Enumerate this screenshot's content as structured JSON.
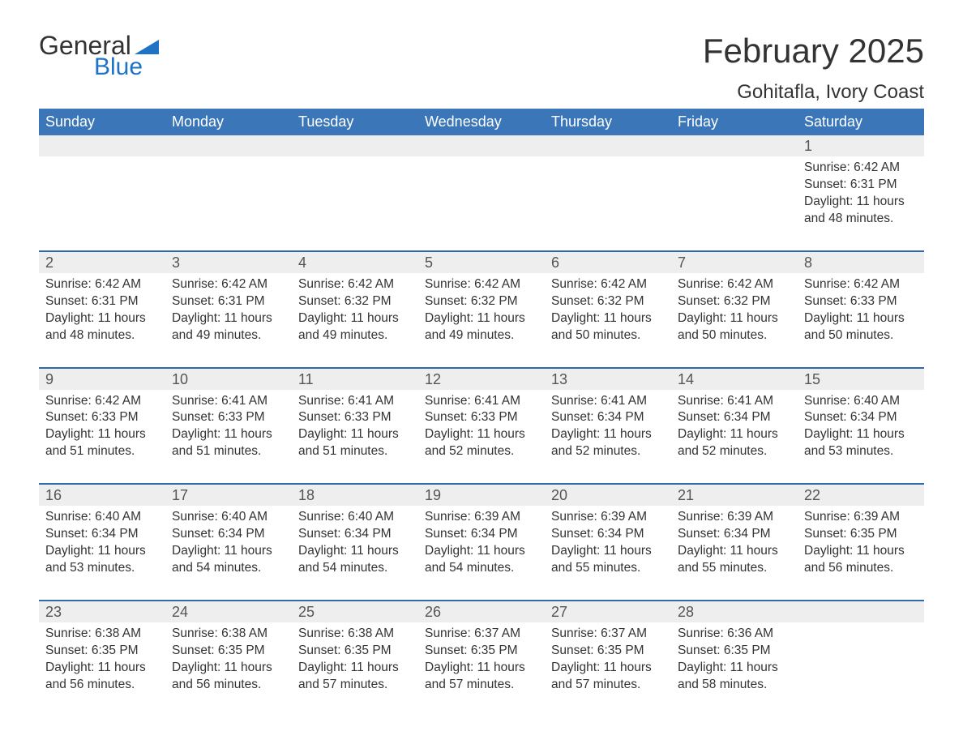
{
  "logo": {
    "word1": "General",
    "word2": "Blue",
    "triangle_color": "#1e73c4"
  },
  "title": "February 2025",
  "location": "Gohitafla, Ivory Coast",
  "colors": {
    "header_bg": "#3b76b8",
    "header_border": "#2f6aab",
    "daynum_bg": "#eeeeee"
  },
  "dow": [
    "Sunday",
    "Monday",
    "Tuesday",
    "Wednesday",
    "Thursday",
    "Friday",
    "Saturday"
  ],
  "weeks": [
    [
      null,
      null,
      null,
      null,
      null,
      null,
      {
        "n": "1",
        "sr": "Sunrise: 6:42 AM",
        "ss": "Sunset: 6:31 PM",
        "dl": "Daylight: 11 hours and 48 minutes."
      }
    ],
    [
      {
        "n": "2",
        "sr": "Sunrise: 6:42 AM",
        "ss": "Sunset: 6:31 PM",
        "dl": "Daylight: 11 hours and 48 minutes."
      },
      {
        "n": "3",
        "sr": "Sunrise: 6:42 AM",
        "ss": "Sunset: 6:31 PM",
        "dl": "Daylight: 11 hours and 49 minutes."
      },
      {
        "n": "4",
        "sr": "Sunrise: 6:42 AM",
        "ss": "Sunset: 6:32 PM",
        "dl": "Daylight: 11 hours and 49 minutes."
      },
      {
        "n": "5",
        "sr": "Sunrise: 6:42 AM",
        "ss": "Sunset: 6:32 PM",
        "dl": "Daylight: 11 hours and 49 minutes."
      },
      {
        "n": "6",
        "sr": "Sunrise: 6:42 AM",
        "ss": "Sunset: 6:32 PM",
        "dl": "Daylight: 11 hours and 50 minutes."
      },
      {
        "n": "7",
        "sr": "Sunrise: 6:42 AM",
        "ss": "Sunset: 6:32 PM",
        "dl": "Daylight: 11 hours and 50 minutes."
      },
      {
        "n": "8",
        "sr": "Sunrise: 6:42 AM",
        "ss": "Sunset: 6:33 PM",
        "dl": "Daylight: 11 hours and 50 minutes."
      }
    ],
    [
      {
        "n": "9",
        "sr": "Sunrise: 6:42 AM",
        "ss": "Sunset: 6:33 PM",
        "dl": "Daylight: 11 hours and 51 minutes."
      },
      {
        "n": "10",
        "sr": "Sunrise: 6:41 AM",
        "ss": "Sunset: 6:33 PM",
        "dl": "Daylight: 11 hours and 51 minutes."
      },
      {
        "n": "11",
        "sr": "Sunrise: 6:41 AM",
        "ss": "Sunset: 6:33 PM",
        "dl": "Daylight: 11 hours and 51 minutes."
      },
      {
        "n": "12",
        "sr": "Sunrise: 6:41 AM",
        "ss": "Sunset: 6:33 PM",
        "dl": "Daylight: 11 hours and 52 minutes."
      },
      {
        "n": "13",
        "sr": "Sunrise: 6:41 AM",
        "ss": "Sunset: 6:34 PM",
        "dl": "Daylight: 11 hours and 52 minutes."
      },
      {
        "n": "14",
        "sr": "Sunrise: 6:41 AM",
        "ss": "Sunset: 6:34 PM",
        "dl": "Daylight: 11 hours and 52 minutes."
      },
      {
        "n": "15",
        "sr": "Sunrise: 6:40 AM",
        "ss": "Sunset: 6:34 PM",
        "dl": "Daylight: 11 hours and 53 minutes."
      }
    ],
    [
      {
        "n": "16",
        "sr": "Sunrise: 6:40 AM",
        "ss": "Sunset: 6:34 PM",
        "dl": "Daylight: 11 hours and 53 minutes."
      },
      {
        "n": "17",
        "sr": "Sunrise: 6:40 AM",
        "ss": "Sunset: 6:34 PM",
        "dl": "Daylight: 11 hours and 54 minutes."
      },
      {
        "n": "18",
        "sr": "Sunrise: 6:40 AM",
        "ss": "Sunset: 6:34 PM",
        "dl": "Daylight: 11 hours and 54 minutes."
      },
      {
        "n": "19",
        "sr": "Sunrise: 6:39 AM",
        "ss": "Sunset: 6:34 PM",
        "dl": "Daylight: 11 hours and 54 minutes."
      },
      {
        "n": "20",
        "sr": "Sunrise: 6:39 AM",
        "ss": "Sunset: 6:34 PM",
        "dl": "Daylight: 11 hours and 55 minutes."
      },
      {
        "n": "21",
        "sr": "Sunrise: 6:39 AM",
        "ss": "Sunset: 6:34 PM",
        "dl": "Daylight: 11 hours and 55 minutes."
      },
      {
        "n": "22",
        "sr": "Sunrise: 6:39 AM",
        "ss": "Sunset: 6:35 PM",
        "dl": "Daylight: 11 hours and 56 minutes."
      }
    ],
    [
      {
        "n": "23",
        "sr": "Sunrise: 6:38 AM",
        "ss": "Sunset: 6:35 PM",
        "dl": "Daylight: 11 hours and 56 minutes."
      },
      {
        "n": "24",
        "sr": "Sunrise: 6:38 AM",
        "ss": "Sunset: 6:35 PM",
        "dl": "Daylight: 11 hours and 56 minutes."
      },
      {
        "n": "25",
        "sr": "Sunrise: 6:38 AM",
        "ss": "Sunset: 6:35 PM",
        "dl": "Daylight: 11 hours and 57 minutes."
      },
      {
        "n": "26",
        "sr": "Sunrise: 6:37 AM",
        "ss": "Sunset: 6:35 PM",
        "dl": "Daylight: 11 hours and 57 minutes."
      },
      {
        "n": "27",
        "sr": "Sunrise: 6:37 AM",
        "ss": "Sunset: 6:35 PM",
        "dl": "Daylight: 11 hours and 57 minutes."
      },
      {
        "n": "28",
        "sr": "Sunrise: 6:36 AM",
        "ss": "Sunset: 6:35 PM",
        "dl": "Daylight: 11 hours and 58 minutes."
      },
      null
    ]
  ]
}
